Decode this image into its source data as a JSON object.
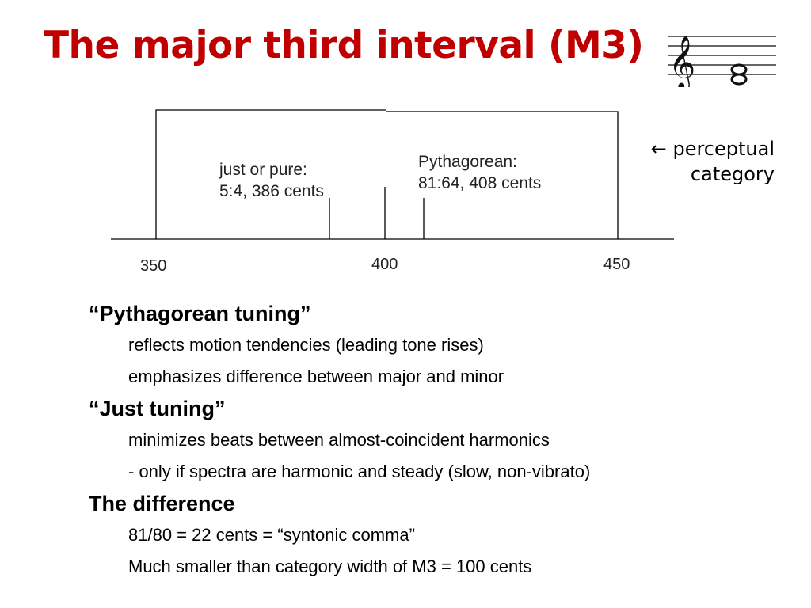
{
  "slide": {
    "title": "The major third interval (M3)"
  },
  "diagram": {
    "just_label_line1": "just or pure:",
    "just_label_line2": "5:4, 386 cents",
    "pyth_label_line1": "Pythagorean:",
    "pyth_label_line2": "81:64, 408 cents",
    "tick_labels": [
      "350",
      "400",
      "450"
    ],
    "perceptual_arrow": "←",
    "perceptual_line1": "perceptual",
    "perceptual_line2": "category",
    "category_range_cents": [
      350,
      450
    ],
    "markers_cents": {
      "just": 386,
      "center": 400,
      "pythagorean": 408
    }
  },
  "bullets": [
    {
      "heading": "“Pythagorean tuning”",
      "items": [
        "reflects motion tendencies (leading tone rises)",
        "emphasizes difference between major and minor"
      ]
    },
    {
      "heading": "“Just tuning”",
      "items": [
        "minimizes beats between almost-coincident harmonics",
        "- only if spectra are harmonic and steady (slow, non-vibrato)"
      ]
    },
    {
      "heading": "The difference",
      "items": [
        "81/80 = 22 cents = “syntonic comma”",
        "Much smaller than category width of M3 = 100 cents"
      ]
    }
  ],
  "colors": {
    "title": "#c00000",
    "diagram_lines": "#000000"
  }
}
